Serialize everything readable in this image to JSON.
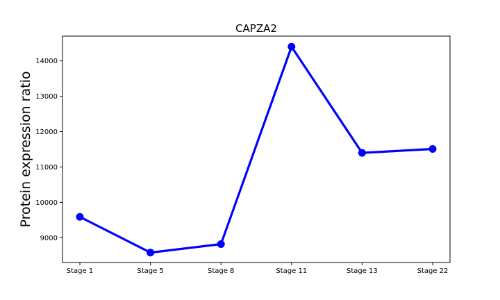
{
  "chart_data": {
    "type": "line",
    "title": "CAPZA2",
    "xlabel": "",
    "ylabel": "Protein expression ratio",
    "categories": [
      "Stage 1",
      "Stage 5",
      "Stage 8",
      "Stage 11",
      "Stage 13",
      "Stage 22"
    ],
    "series": [
      {
        "values": [
          9590,
          8580,
          8820,
          14400,
          11400,
          11510
        ],
        "color": "#0000ff",
        "marker": "circle"
      }
    ],
    "ylim": [
      8300,
      14700
    ],
    "yticks": [
      9000,
      10000,
      11000,
      12000,
      13000,
      14000
    ],
    "grid": false,
    "legend": "none"
  }
}
